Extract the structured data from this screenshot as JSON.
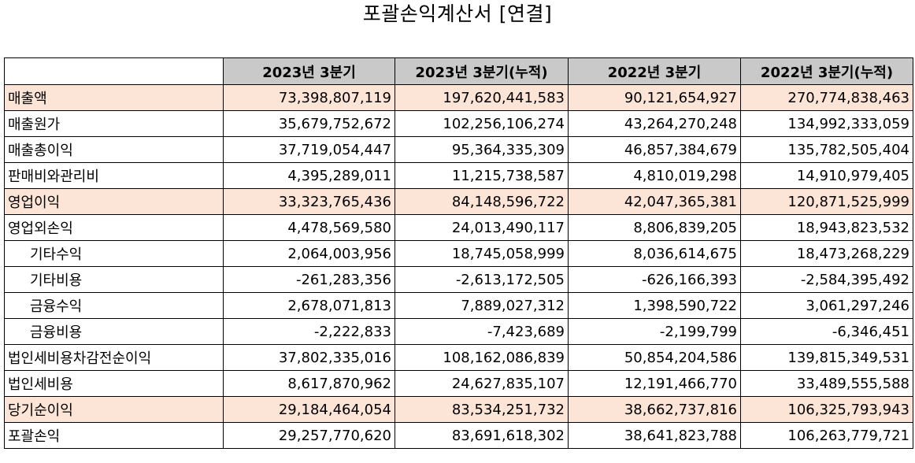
{
  "title": "포괄손익계산서 [연결]",
  "colors": {
    "header_bg": "#c9c9c9",
    "highlight_bg": "#fce4d6",
    "border": "#000000"
  },
  "table": {
    "columns": [
      "2023년 3분기",
      "2023년 3분기(누적)",
      "2022년 3분기",
      "2022년 3분기(누적)"
    ],
    "rows": [
      {
        "label": "매출액",
        "highlight": true,
        "indent": false,
        "values": [
          "73,398,807,119",
          "197,620,441,583",
          "90,121,654,927",
          "270,774,838,463"
        ]
      },
      {
        "label": "매출원가",
        "highlight": false,
        "indent": false,
        "values": [
          "35,679,752,672",
          "102,256,106,274",
          "43,264,270,248",
          "134,992,333,059"
        ]
      },
      {
        "label": "매출총이익",
        "highlight": false,
        "indent": false,
        "values": [
          "37,719,054,447",
          "95,364,335,309",
          "46,857,384,679",
          "135,782,505,404"
        ]
      },
      {
        "label": "판매비와관리비",
        "highlight": false,
        "indent": false,
        "values": [
          "4,395,289,011",
          "11,215,738,587",
          "4,810,019,298",
          "14,910,979,405"
        ]
      },
      {
        "label": "영업이익",
        "highlight": true,
        "indent": false,
        "values": [
          "33,323,765,436",
          "84,148,596,722",
          "42,047,365,381",
          "120,871,525,999"
        ]
      },
      {
        "label": "영업외손익",
        "highlight": false,
        "indent": false,
        "values": [
          "4,478,569,580",
          "24,013,490,117",
          "8,806,839,205",
          "18,943,823,532"
        ]
      },
      {
        "label": "기타수익",
        "highlight": false,
        "indent": true,
        "values": [
          "2,064,003,956",
          "18,745,058,999",
          "8,036,614,675",
          "18,473,268,229"
        ]
      },
      {
        "label": "기타비용",
        "highlight": false,
        "indent": true,
        "values": [
          "-261,283,356",
          "-2,613,172,505",
          "-626,166,393",
          "-2,584,395,492"
        ]
      },
      {
        "label": "금융수익",
        "highlight": false,
        "indent": true,
        "values": [
          "2,678,071,813",
          "7,889,027,312",
          "1,398,590,722",
          "3,061,297,246"
        ]
      },
      {
        "label": "금융비용",
        "highlight": false,
        "indent": true,
        "values": [
          "-2,222,833",
          "-7,423,689",
          "-2,199,799",
          "-6,346,451"
        ]
      },
      {
        "label": "법인세비용차감전순이익",
        "highlight": false,
        "indent": false,
        "values": [
          "37,802,335,016",
          "108,162,086,839",
          "50,854,204,586",
          "139,815,349,531"
        ]
      },
      {
        "label": "법인세비용",
        "highlight": false,
        "indent": false,
        "values": [
          "8,617,870,962",
          "24,627,835,107",
          "12,191,466,770",
          "33,489,555,588"
        ]
      },
      {
        "label": "당기순이익",
        "highlight": true,
        "indent": false,
        "values": [
          "29,184,464,054",
          "83,534,251,732",
          "38,662,737,816",
          "106,325,793,943"
        ]
      },
      {
        "label": "포괄손익",
        "highlight": false,
        "indent": false,
        "values": [
          "29,257,770,620",
          "83,691,618,302",
          "38,641,823,788",
          "106,263,779,721"
        ]
      }
    ]
  }
}
